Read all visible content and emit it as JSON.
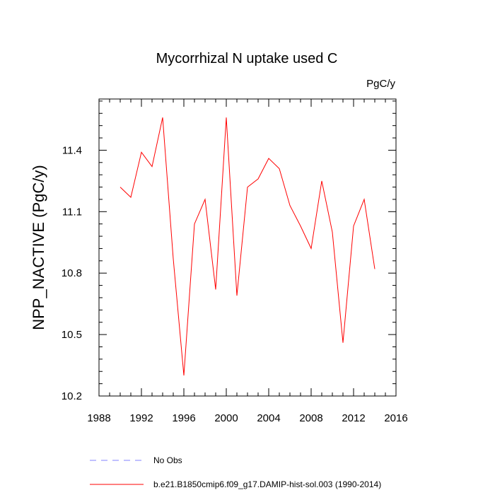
{
  "chart_data": {
    "type": "line",
    "title": "Mycorrhizal N uptake used C",
    "units": "PgC/y",
    "ylabel": "NPP_NACTIVE  (PgC/y)",
    "xlabel": "",
    "xlim": [
      1988,
      2016
    ],
    "ylim": [
      10.2,
      11.65
    ],
    "xticks": [
      1988,
      1992,
      1996,
      2000,
      2004,
      2008,
      2012,
      2016
    ],
    "yticks": [
      10.2,
      10.5,
      10.8,
      11.1,
      11.4
    ],
    "ytick_labels": [
      "10.2",
      "10.5",
      "10.8",
      "11.1",
      "11.4"
    ],
    "grid": false,
    "legend_position": "bottom",
    "series": [
      {
        "name": "b.e21.B1850cmip6.f09_g17.DAMIP-hist-sol.003 (1990-2014)",
        "color": "#ff0000",
        "line_style": "solid",
        "x": [
          1990,
          1991,
          1992,
          1993,
          1994,
          1995,
          1996,
          1997,
          1998,
          1999,
          2000,
          2001,
          2002,
          2003,
          2004,
          2005,
          2006,
          2007,
          2008,
          2009,
          2010,
          2011,
          2012,
          2013,
          2014
        ],
        "values": [
          11.22,
          11.17,
          11.39,
          11.32,
          11.56,
          10.87,
          10.3,
          11.04,
          11.16,
          10.72,
          11.56,
          10.69,
          11.22,
          11.26,
          11.36,
          11.31,
          11.13,
          11.03,
          10.92,
          11.25,
          11.0,
          10.46,
          11.03,
          11.16,
          10.82
        ]
      }
    ],
    "legend": [
      {
        "label": "No Obs",
        "color": "#8080ff",
        "line_style": "dashed"
      },
      {
        "label": "b.e21.B1850cmip6.f09_g17.DAMIP-hist-sol.003 (1990-2014)",
        "color": "#ff0000",
        "line_style": "solid"
      }
    ]
  }
}
